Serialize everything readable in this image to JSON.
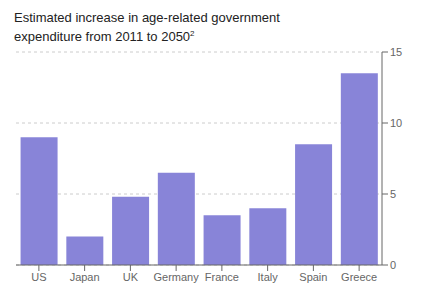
{
  "chart_data": {
    "type": "bar",
    "title": "Estimated increase in age-related government\nexpenditure from 2011 to 2050",
    "annotations": [
      "2"
    ],
    "categories": [
      "US",
      "Japan",
      "UK",
      "Germany",
      "France",
      "Italy",
      "Spain",
      "Greece"
    ],
    "values": [
      9.0,
      2.0,
      4.8,
      6.5,
      3.5,
      4.0,
      8.5,
      13.5
    ],
    "color": "#8884d8",
    "ylim": [
      0,
      15
    ],
    "yticks": [
      0,
      5,
      10,
      15
    ],
    "grid": true
  }
}
